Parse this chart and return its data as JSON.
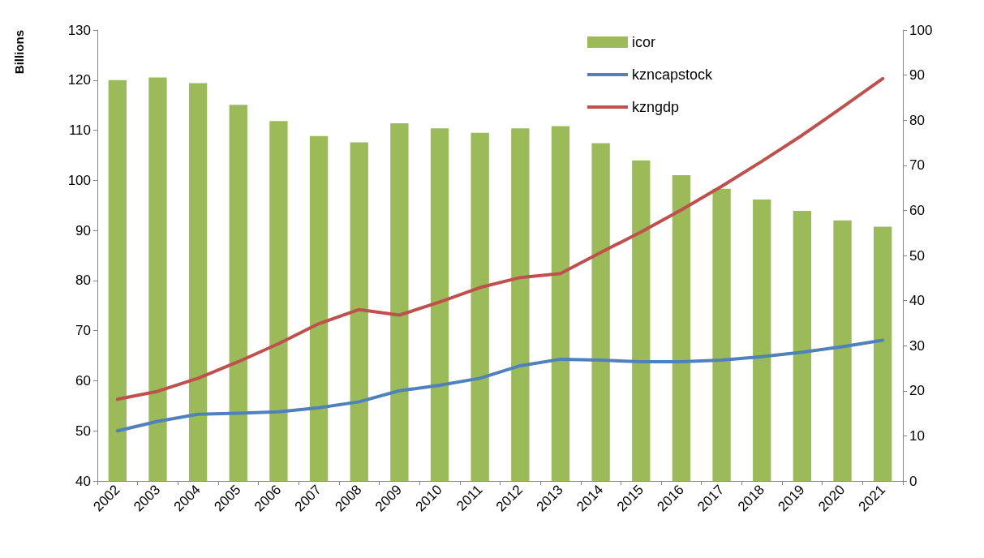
{
  "chart_data": {
    "type": "bar",
    "ylabel": "Billions",
    "categories": [
      "2002",
      "2003",
      "2004",
      "2005",
      "2006",
      "2007",
      "2008",
      "2009",
      "2010",
      "2011",
      "2012",
      "2013",
      "2014",
      "2015",
      "2016",
      "2017",
      "2018",
      "2019",
      "2020",
      "2021"
    ],
    "series": [
      {
        "name": "icor",
        "axis": "y2",
        "color": "#9bbb59",
        "values": [
          88.9,
          89.5,
          88.2,
          83.4,
          79.8,
          76.5,
          75.1,
          79.3,
          78.2,
          77.2,
          78.2,
          78.7,
          74.9,
          71.1,
          67.8,
          64.8,
          62.4,
          59.9,
          57.8,
          56.4
        ]
      },
      {
        "name": "kzncapstock",
        "type": "line",
        "color": "#4f81bd",
        "values": [
          50.0,
          51.9,
          53.3,
          53.5,
          53.8,
          54.6,
          55.8,
          58.0,
          59.1,
          60.5,
          63.0,
          64.3,
          64.1,
          63.8,
          63.8,
          64.1,
          64.8,
          65.7,
          66.8,
          68.1
        ]
      },
      {
        "name": "kzngdp",
        "type": "line",
        "color": "#c0504d",
        "values": [
          56.3,
          57.9,
          60.5,
          63.8,
          67.4,
          71.4,
          74.2,
          73.1,
          75.7,
          78.6,
          80.6,
          81.4,
          85.6,
          89.7,
          94.1,
          98.8,
          103.8,
          109.0,
          114.6,
          120.3
        ]
      }
    ],
    "ylim": [
      40,
      130
    ],
    "yticks": [
      40,
      50,
      60,
      70,
      80,
      90,
      100,
      110,
      120,
      130
    ],
    "y2lim": [
      0,
      100
    ],
    "y2ticks": [
      0,
      10,
      20,
      30,
      40,
      50,
      60,
      70,
      80,
      90,
      100
    ],
    "legend": "top right",
    "grid": false,
    "marker": "none"
  }
}
